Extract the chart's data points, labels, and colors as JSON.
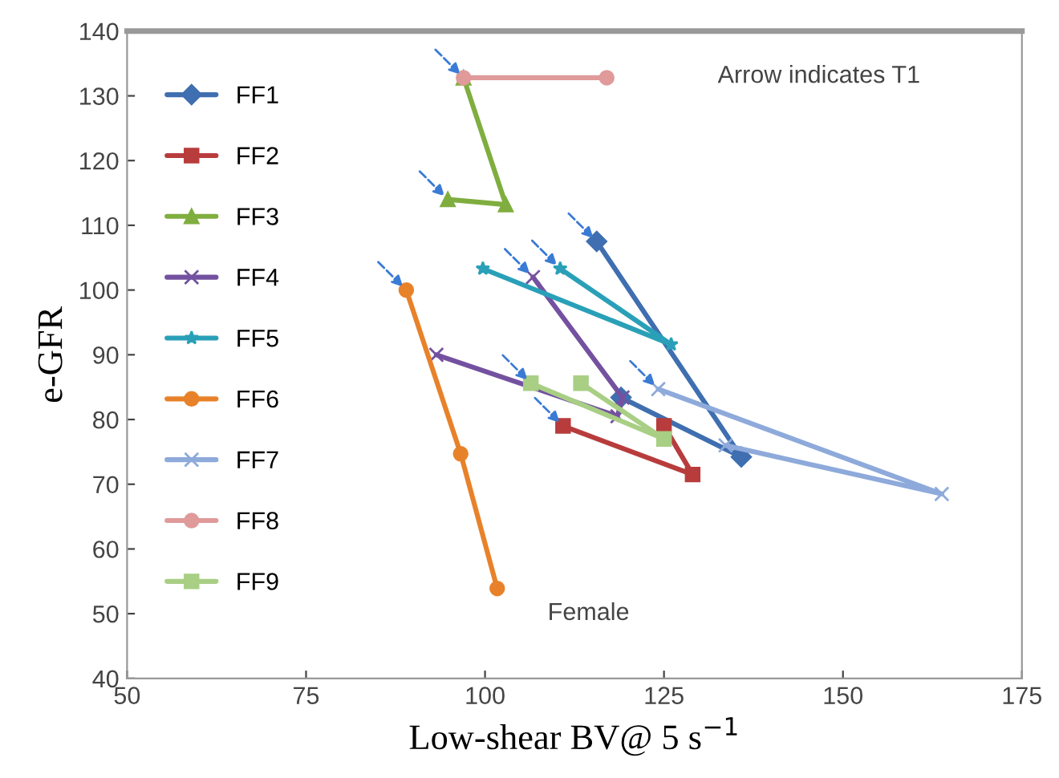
{
  "chart_data": {
    "type": "line",
    "xlabel": "Low-shear BV@ 5 s$^{−1}$",
    "ylabel": "e-GFR",
    "xlim": [
      50,
      175
    ],
    "xticks": [
      50,
      75,
      100,
      125,
      150,
      175
    ],
    "ylim": [
      40,
      140
    ],
    "yticks": [
      40,
      50,
      60,
      70,
      80,
      90,
      100,
      110,
      120,
      130,
      140
    ],
    "grid": false,
    "legend": "top left",
    "annotations": [
      "Arrow indicates T1",
      "Female"
    ],
    "series": [
      {
        "name": "FF1",
        "color": "#3f6fb0",
        "marker": "diamond",
        "x": [
          115.6,
          135.8,
          119.0
        ],
        "values": [
          107.5,
          74.2,
          83.4
        ]
      },
      {
        "name": "FF2",
        "color": "#b83c3c",
        "marker": "square",
        "x": [
          110.9,
          129.0,
          125.0
        ],
        "values": [
          79,
          71.5,
          79
        ]
      },
      {
        "name": "FF3",
        "color": "#7fae3f",
        "marker": "triangle",
        "x": [
          94.8,
          102.9,
          97.0
        ],
        "values": [
          114,
          113.2,
          132.8
        ]
      },
      {
        "name": "FF4",
        "color": "#7451a0",
        "marker": "cross",
        "x": [
          106.7,
          119.2,
          118.5,
          93.2
        ],
        "values": [
          102,
          83.4,
          80.5,
          90
        ]
      },
      {
        "name": "FF5",
        "color": "#2aa0b8",
        "marker": "star",
        "x": [
          110.5,
          126.0,
          99.7
        ],
        "values": [
          103.3,
          91.6,
          103.3
        ]
      },
      {
        "name": "FF6",
        "color": "#e8822a",
        "marker": "circle",
        "x": [
          89.0,
          96.6,
          101.7
        ],
        "values": [
          100,
          74.7,
          53.9
        ]
      },
      {
        "name": "FF7",
        "color": "#8eaadb",
        "marker": "cross",
        "x": [
          124.2,
          163.8,
          133.6
        ],
        "values": [
          84.7,
          68.5,
          76
        ]
      },
      {
        "name": "FF8",
        "color": "#e09a9a",
        "marker": "circle",
        "x": [
          97.0,
          117.0
        ],
        "values": [
          132.8,
          132.8
        ]
      },
      {
        "name": "FF9",
        "color": "#a8cf84",
        "marker": "square",
        "x": [
          106.4,
          125.0,
          113.4
        ],
        "values": [
          85.6,
          77,
          85.6
        ]
      }
    ]
  }
}
